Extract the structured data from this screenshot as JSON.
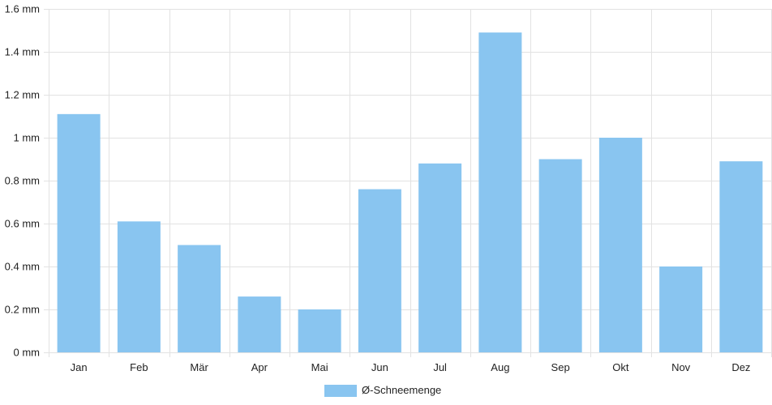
{
  "chart_data": {
    "type": "bar",
    "categories": [
      "Jan",
      "Feb",
      "Mär",
      "Apr",
      "Mai",
      "Jun",
      "Jul",
      "Aug",
      "Sep",
      "Okt",
      "Nov",
      "Dez"
    ],
    "series": [
      {
        "name": "Ø-Schneemenge",
        "values": [
          1.11,
          0.61,
          0.5,
          0.26,
          0.2,
          0.76,
          0.88,
          1.49,
          0.9,
          1.0,
          0.4,
          0.89
        ],
        "color": "#89c5f0"
      }
    ],
    "ylim": [
      0,
      1.6
    ],
    "yticks": [
      {
        "value": 0,
        "label": "0 mm"
      },
      {
        "value": 0.2,
        "label": "0.2 mm"
      },
      {
        "value": 0.4,
        "label": "0.4 mm"
      },
      {
        "value": 0.6,
        "label": "0.6 mm"
      },
      {
        "value": 0.8,
        "label": "0.8 mm"
      },
      {
        "value": 1.0,
        "label": "1 mm"
      },
      {
        "value": 1.2,
        "label": "1.2 mm"
      },
      {
        "value": 1.4,
        "label": "1.4 mm"
      },
      {
        "value": 1.6,
        "label": "1.6 mm"
      }
    ],
    "grid": true,
    "legend_position": "bottom-center",
    "grid_color": "#e2e2e2"
  }
}
